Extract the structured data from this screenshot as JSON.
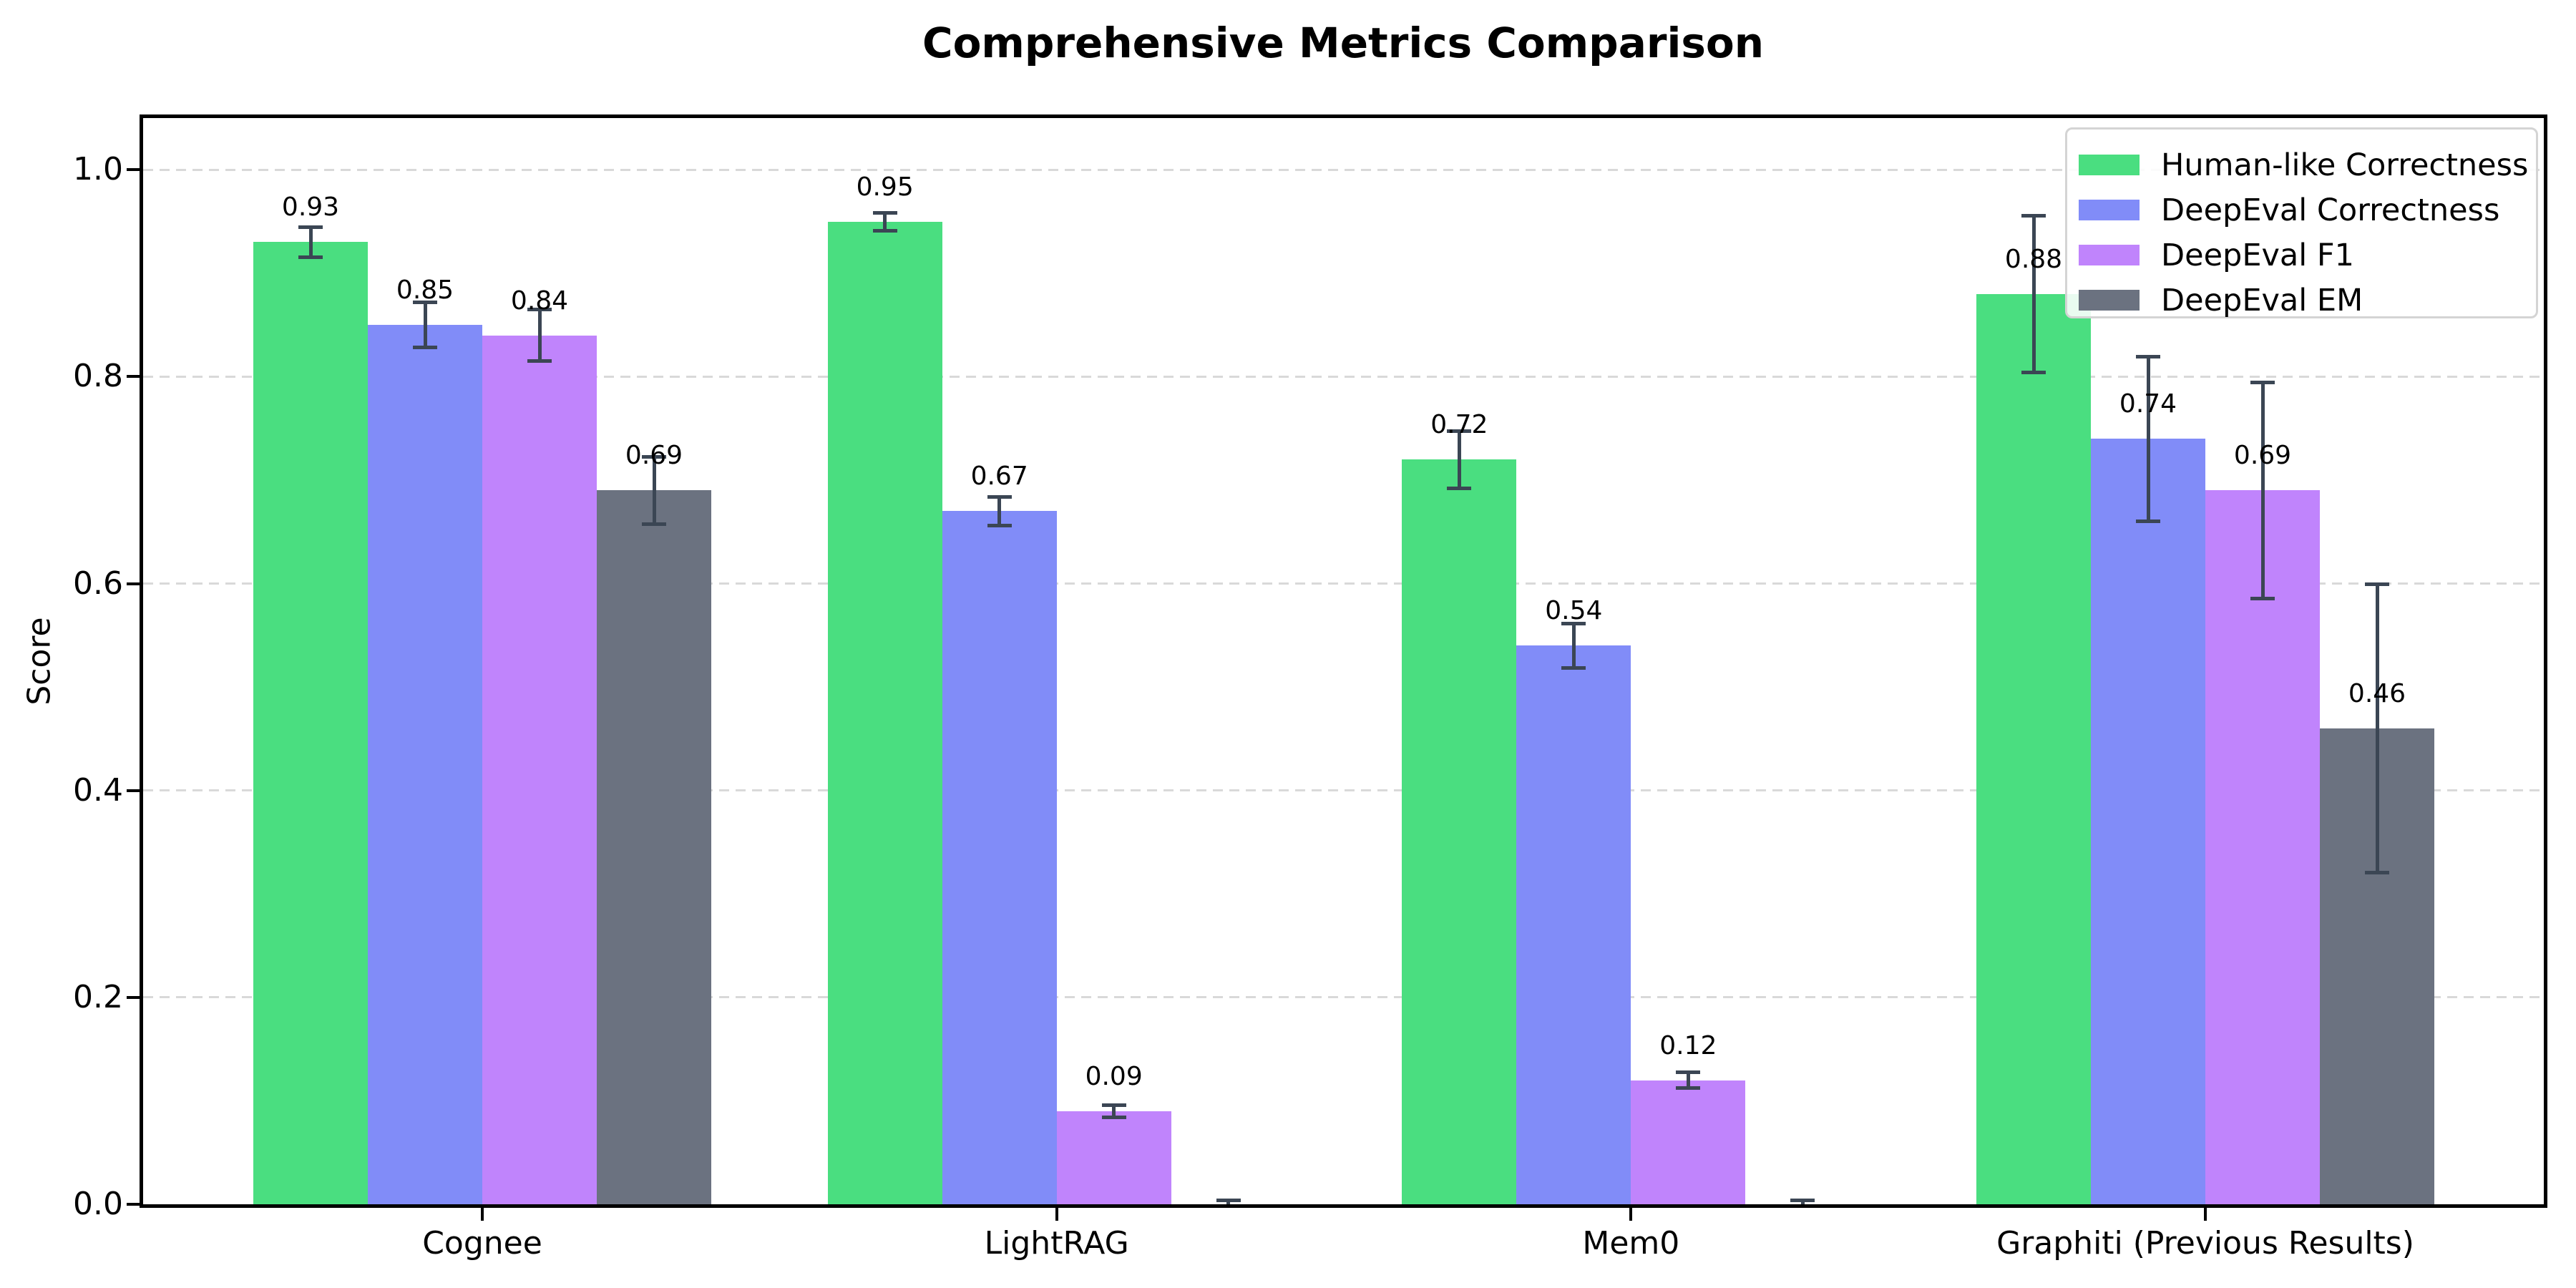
{
  "chart_data": {
    "type": "bar",
    "title": "Comprehensive Metrics Comparison",
    "ylabel": "Score",
    "xlabel": "",
    "categories": [
      "Cognee",
      "LightRAG",
      "Mem0",
      "Graphiti (Previous Results)"
    ],
    "series": [
      {
        "name": "Human-like Correctness",
        "color": "#4ade80",
        "values": [
          0.93,
          0.95,
          0.72,
          0.88
        ],
        "errors": [
          0.015,
          0.009,
          0.028,
          0.076
        ],
        "labels": [
          "0.93",
          "0.95",
          "0.72",
          "0.88"
        ]
      },
      {
        "name": "DeepEval Correctness",
        "color": "#818cf8",
        "values": [
          0.85,
          0.67,
          0.54,
          0.74
        ],
        "errors": [
          0.022,
          0.014,
          0.022,
          0.08
        ],
        "labels": [
          "0.85",
          "0.67",
          "0.54",
          "0.74"
        ]
      },
      {
        "name": "DeepEval F1",
        "color": "#c084fc",
        "values": [
          0.84,
          0.09,
          0.12,
          0.69
        ],
        "errors": [
          0.025,
          0.006,
          0.008,
          0.105
        ],
        "labels": [
          "0.84",
          "0.09",
          "0.12",
          "0.69"
        ]
      },
      {
        "name": "DeepEval EM",
        "color": "#6b7280",
        "values": [
          0.69,
          0.0,
          0.0,
          0.46
        ],
        "errors": [
          0.033,
          0.004,
          0.004,
          0.14
        ],
        "labels": [
          "0.69",
          "",
          "",
          "0.46"
        ]
      }
    ],
    "yticks": [
      "0.0",
      "0.2",
      "0.4",
      "0.6",
      "0.8",
      "1.0"
    ],
    "ytick_values": [
      0.0,
      0.2,
      0.4,
      0.6,
      0.8,
      1.0
    ],
    "ylim": [
      0,
      1.05
    ],
    "grid": "horizontal-dashed",
    "grid_color": "#d9d9d9",
    "error_bar_color": "#3b4654",
    "legend_position": "upper right",
    "background_color": "#ffffff"
  }
}
